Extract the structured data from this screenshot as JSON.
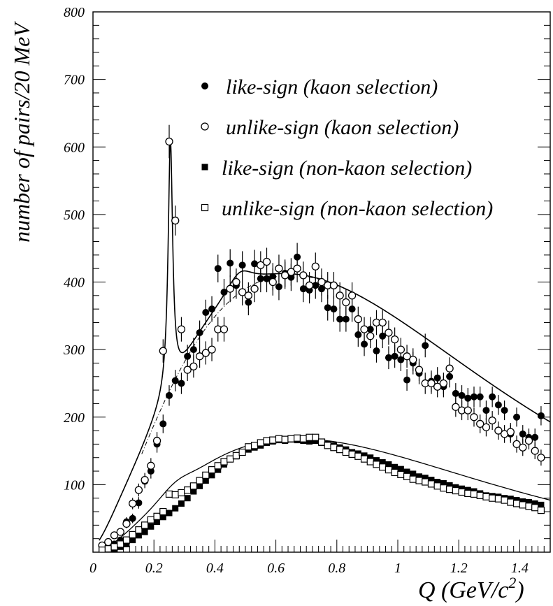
{
  "chart_data": {
    "type": "scatter",
    "xlabel": "Q (GeV/c",
    "xlabel_sup": "2",
    "xlabel_close": ")",
    "ylabel": "number of pairs/20 MeV",
    "xlim": [
      0,
      1.5
    ],
    "ylim": [
      0,
      800
    ],
    "x_ticks": [
      "0",
      "0.2",
      "0.4",
      "0.6",
      "0.8",
      "1",
      "1.2",
      "1.4"
    ],
    "y_ticks": [
      "100",
      "200",
      "300",
      "400",
      "500",
      "600",
      "700",
      "800"
    ],
    "legend_position": "top-right",
    "series": [
      {
        "name": "like-sign (kaon selection)",
        "marker": "filled-circle",
        "x": [
          0.03,
          0.05,
          0.07,
          0.09,
          0.11,
          0.13,
          0.15,
          0.17,
          0.19,
          0.21,
          0.23,
          0.25,
          0.27,
          0.29,
          0.31,
          0.33,
          0.35,
          0.37,
          0.39,
          0.41,
          0.43,
          0.45,
          0.47,
          0.49,
          0.51,
          0.53,
          0.55,
          0.57,
          0.59,
          0.61,
          0.63,
          0.65,
          0.67,
          0.69,
          0.71,
          0.73,
          0.75,
          0.77,
          0.79,
          0.81,
          0.83,
          0.85,
          0.87,
          0.89,
          0.91,
          0.93,
          0.95,
          0.97,
          0.99,
          1.01,
          1.03,
          1.05,
          1.07,
          1.09,
          1.11,
          1.13,
          1.15,
          1.17,
          1.19,
          1.21,
          1.23,
          1.25,
          1.27,
          1.29,
          1.31,
          1.33,
          1.35,
          1.37,
          1.39,
          1.41,
          1.43,
          1.45,
          1.47
        ],
        "y": [
          5,
          10,
          12,
          18,
          45,
          50,
          73,
          105,
          120,
          160,
          190,
          232,
          254,
          250,
          290,
          300,
          325,
          355,
          360,
          420,
          385,
          428,
          395,
          425,
          370,
          427,
          405,
          405,
          408,
          393,
          413,
          407,
          437,
          390,
          388,
          395,
          390,
          362,
          360,
          345,
          345,
          360,
          322,
          308,
          330,
          298,
          320,
          288,
          290,
          285,
          255,
          280,
          265,
          306,
          253,
          258,
          245,
          260,
          235,
          232,
          228,
          230,
          230,
          210,
          230,
          218,
          210,
          175,
          200,
          175,
          170,
          170,
          202
        ]
      },
      {
        "name": "unlike-sign (kaon selection)",
        "marker": "open-circle",
        "x": [
          0.03,
          0.05,
          0.07,
          0.09,
          0.11,
          0.13,
          0.15,
          0.17,
          0.19,
          0.21,
          0.23,
          0.25,
          0.27,
          0.29,
          0.31,
          0.33,
          0.35,
          0.37,
          0.39,
          0.41,
          0.43,
          0.45,
          0.47,
          0.49,
          0.51,
          0.53,
          0.55,
          0.57,
          0.59,
          0.61,
          0.63,
          0.65,
          0.67,
          0.69,
          0.71,
          0.73,
          0.75,
          0.77,
          0.79,
          0.81,
          0.83,
          0.85,
          0.87,
          0.89,
          0.91,
          0.93,
          0.95,
          0.97,
          0.99,
          1.01,
          1.03,
          1.05,
          1.07,
          1.09,
          1.11,
          1.13,
          1.15,
          1.17,
          1.19,
          1.21,
          1.23,
          1.25,
          1.27,
          1.29,
          1.31,
          1.33,
          1.35,
          1.37,
          1.39,
          1.41,
          1.43,
          1.45,
          1.47
        ],
        "y": [
          10,
          15,
          25,
          30,
          42,
          72,
          92,
          107,
          128,
          165,
          298,
          608,
          491,
          330,
          270,
          275,
          290,
          295,
          300,
          330,
          330,
          390,
          400,
          385,
          380,
          390,
          425,
          430,
          400,
          420,
          410,
          415,
          420,
          410,
          395,
          423,
          400,
          395,
          395,
          380,
          370,
          380,
          345,
          330,
          320,
          340,
          340,
          325,
          315,
          300,
          290,
          285,
          270,
          250,
          250,
          245,
          250,
          272,
          215,
          210,
          210,
          200,
          190,
          185,
          195,
          180,
          175,
          178,
          160,
          155,
          165,
          150,
          140
        ]
      },
      {
        "name": "like-sign (non-kaon selection)",
        "marker": "filled-square",
        "x": [
          0.03,
          0.05,
          0.07,
          0.09,
          0.11,
          0.13,
          0.15,
          0.17,
          0.19,
          0.21,
          0.23,
          0.25,
          0.27,
          0.29,
          0.31,
          0.33,
          0.35,
          0.37,
          0.39,
          0.41,
          0.43,
          0.45,
          0.47,
          0.49,
          0.51,
          0.53,
          0.55,
          0.57,
          0.59,
          0.61,
          0.63,
          0.65,
          0.67,
          0.69,
          0.71,
          0.73,
          0.75,
          0.77,
          0.79,
          0.81,
          0.83,
          0.85,
          0.87,
          0.89,
          0.91,
          0.93,
          0.95,
          0.97,
          0.99,
          1.01,
          1.03,
          1.05,
          1.07,
          1.09,
          1.11,
          1.13,
          1.15,
          1.17,
          1.19,
          1.21,
          1.23,
          1.25,
          1.27,
          1.29,
          1.31,
          1.33,
          1.35,
          1.37,
          1.39,
          1.41,
          1.43,
          1.45,
          1.47
        ],
        "y": [
          2,
          3,
          5,
          8,
          12,
          18,
          25,
          30,
          38,
          45,
          52,
          58,
          65,
          72,
          80,
          90,
          98,
          106,
          114,
          122,
          130,
          138,
          142,
          148,
          152,
          155,
          158,
          162,
          164,
          166,
          165,
          167,
          166,
          165,
          164,
          165,
          162,
          160,
          158,
          155,
          152,
          148,
          146,
          143,
          140,
          136,
          133,
          130,
          126,
          123,
          119,
          116,
          112,
          110,
          107,
          104,
          102,
          99,
          96,
          94,
          92,
          90,
          87,
          84,
          83,
          82,
          80,
          79,
          77,
          75,
          74,
          72,
          70
        ]
      },
      {
        "name": "unlike-sign (non-kaon selection)",
        "marker": "open-square",
        "x": [
          0.03,
          0.05,
          0.07,
          0.09,
          0.11,
          0.13,
          0.15,
          0.17,
          0.19,
          0.21,
          0.23,
          0.25,
          0.27,
          0.29,
          0.31,
          0.33,
          0.35,
          0.37,
          0.39,
          0.41,
          0.43,
          0.45,
          0.47,
          0.49,
          0.51,
          0.53,
          0.55,
          0.57,
          0.59,
          0.61,
          0.63,
          0.65,
          0.67,
          0.69,
          0.71,
          0.73,
          0.75,
          0.77,
          0.79,
          0.81,
          0.83,
          0.85,
          0.87,
          0.89,
          0.91,
          0.93,
          0.95,
          0.97,
          0.99,
          1.01,
          1.03,
          1.05,
          1.07,
          1.09,
          1.11,
          1.13,
          1.15,
          1.17,
          1.19,
          1.21,
          1.23,
          1.25,
          1.27,
          1.29,
          1.31,
          1.33,
          1.35,
          1.37,
          1.39,
          1.41,
          1.43,
          1.45,
          1.47
        ],
        "y": [
          3,
          5,
          8,
          12,
          18,
          26,
          33,
          40,
          48,
          53,
          60,
          86,
          85,
          88,
          92,
          98,
          106,
          114,
          122,
          128,
          134,
          138,
          143,
          148,
          156,
          158,
          162,
          165,
          166,
          168,
          167,
          168,
          169,
          168,
          170,
          170,
          163,
          158,
          155,
          152,
          148,
          145,
          142,
          138,
          134,
          130,
          126,
          122,
          118,
          115,
          112,
          108,
          106,
          104,
          101,
          98,
          95,
          93,
          91,
          89,
          87,
          86,
          84,
          82,
          80,
          79,
          77,
          74,
          72,
          70,
          68,
          66,
          62
        ]
      }
    ]
  }
}
